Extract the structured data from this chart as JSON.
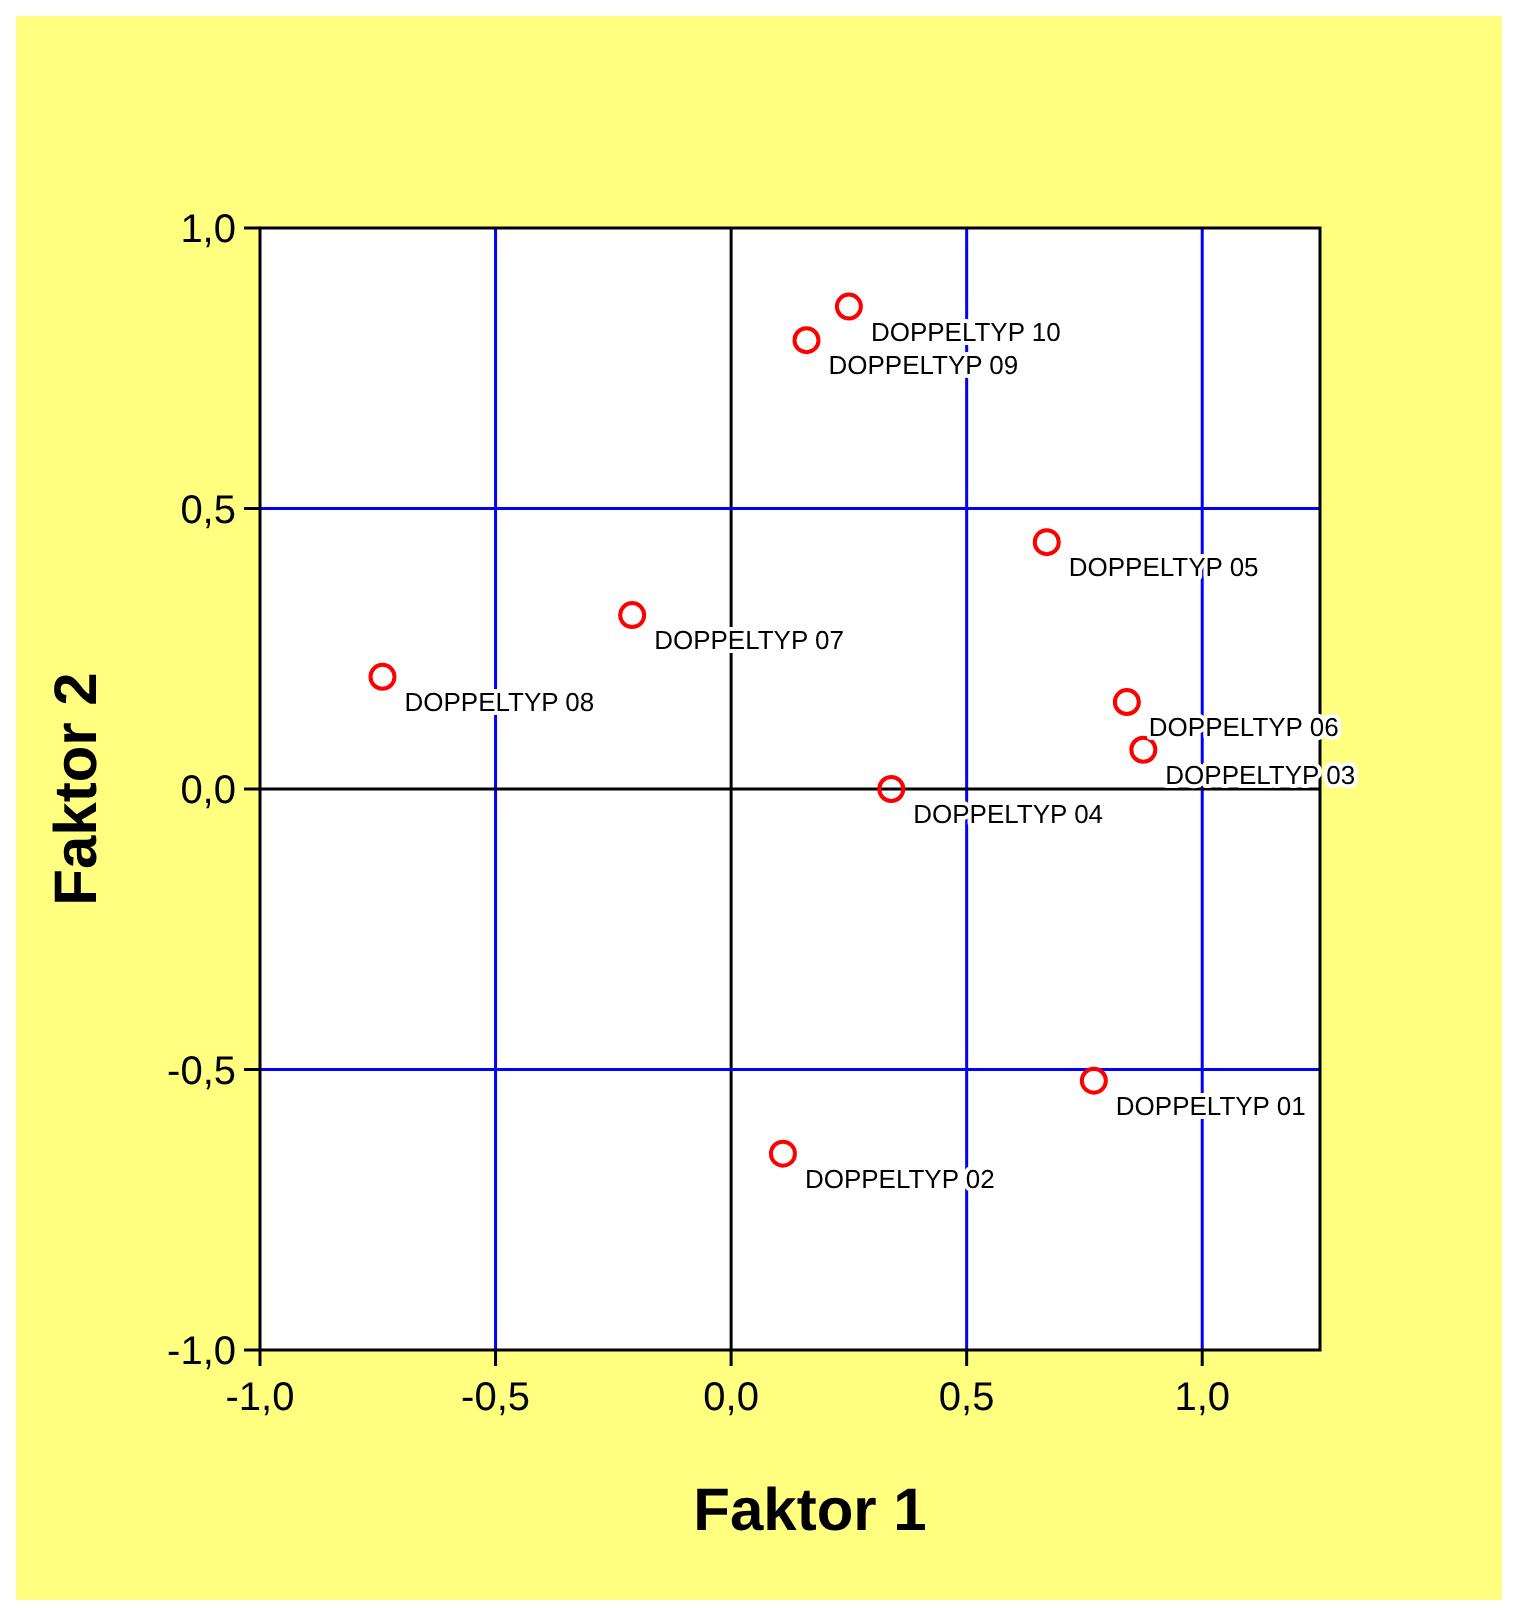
{
  "chart_data": {
    "type": "scatter",
    "xlabel": "Faktor 1",
    "ylabel": "Faktor 2",
    "x": [
      0.77,
      0.11,
      0.875,
      0.34,
      0.67,
      0.84,
      -0.21,
      -0.74,
      0.16,
      0.25
    ],
    "series": [
      {
        "color": "#ff0000",
        "values": [
          -0.52,
          -0.65,
          0.07,
          0.0,
          0.44,
          0.155,
          0.31,
          0.2,
          0.8,
          0.86
        ]
      }
    ],
    "marker": "circle",
    "xlim": [
      -1,
      1.25
    ],
    "ylim": [
      -1,
      1
    ],
    "xticks": [
      {
        "value": -1,
        "label": "-1,0"
      },
      {
        "value": -0.5,
        "label": "-0,5"
      },
      {
        "value": 0,
        "label": "0,0"
      },
      {
        "value": 0.5,
        "label": "0,5"
      },
      {
        "value": 1,
        "label": "1,0"
      }
    ],
    "yticks": [
      {
        "value": -1,
        "label": "-1,0"
      },
      {
        "value": -0.5,
        "label": "-0,5"
      },
      {
        "value": 0,
        "label": "0,0"
      },
      {
        "value": 0.5,
        "label": "0,5"
      },
      {
        "value": 1,
        "label": "1,0"
      }
    ],
    "grid": true,
    "annotations": [
      {
        "text": "DOPPELTYP 01",
        "x": 0.77,
        "y": -0.52
      },
      {
        "text": "DOPPELTYP 02",
        "x": 0.11,
        "y": -0.65
      },
      {
        "text": "DOPPELTYP 03",
        "x": 0.875,
        "y": 0.07
      },
      {
        "text": "DOPPELTYP 04",
        "x": 0.34,
        "y": 0.0
      },
      {
        "text": "DOPPELTYP 05",
        "x": 0.67,
        "y": 0.44
      },
      {
        "text": "DOPPELTYP 06",
        "x": 0.84,
        "y": 0.155
      },
      {
        "text": "DOPPELTYP 07",
        "x": -0.21,
        "y": 0.31
      },
      {
        "text": "DOPPELTYP 08",
        "x": -0.74,
        "y": 0.2
      },
      {
        "text": "DOPPELTYP 09",
        "x": 0.16,
        "y": 0.8
      },
      {
        "text": "DOPPELTYP 10",
        "x": 0.25,
        "y": 0.86
      }
    ]
  }
}
